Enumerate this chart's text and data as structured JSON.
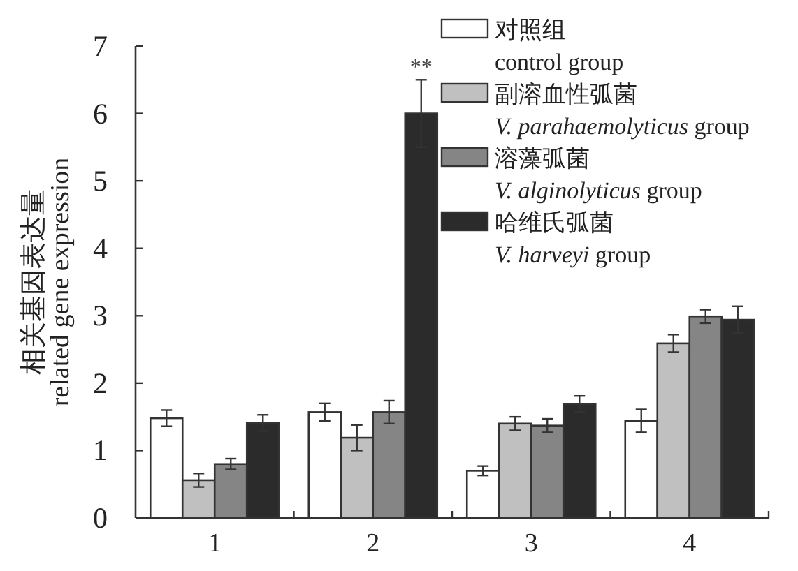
{
  "chart_data": {
    "type": "bar",
    "ylabel": "相关基因表达量\nrelated gene expression",
    "categories": [
      "1",
      "2",
      "3",
      "4"
    ],
    "ylim": [
      0,
      7
    ],
    "yticks": [
      0,
      1,
      2,
      3,
      4,
      5,
      6,
      7
    ],
    "legend": "top right",
    "series": [
      {
        "name": "对照组\ncontrol group",
        "color": "#ffffff",
        "values": [
          1.48,
          1.57,
          0.7,
          1.44
        ],
        "errors": [
          0.12,
          0.13,
          0.07,
          0.17
        ]
      },
      {
        "name": "副溶血性弧菌\nV. parahaemolyticus group",
        "color": "#c0c0c0",
        "values": [
          0.56,
          1.19,
          1.4,
          2.59
        ],
        "errors": [
          0.1,
          0.19,
          0.1,
          0.13
        ]
      },
      {
        "name": "溶藻弧菌\nV. alginolyticus group",
        "color": "#858585",
        "values": [
          0.8,
          1.57,
          1.37,
          2.99
        ],
        "errors": [
          0.08,
          0.17,
          0.1,
          0.1
        ]
      },
      {
        "name": "哈维氏弧菌\nV. harveyi group",
        "color": "#2b2b2b",
        "values": [
          1.41,
          6.0,
          1.69,
          2.94
        ],
        "errors": [
          0.12,
          0.5,
          0.12,
          0.2
        ]
      }
    ],
    "annotations": [
      "**"
    ]
  }
}
